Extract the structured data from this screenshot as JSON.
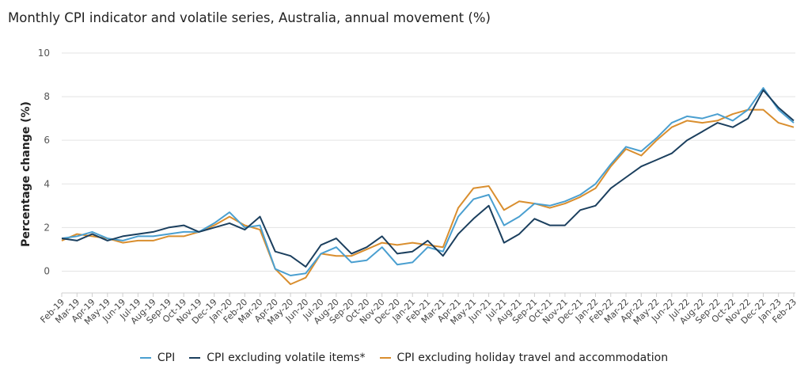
{
  "chart_data": {
    "type": "line",
    "title": "Monthly CPI indicator and volatile series, Australia, annual movement (%)",
    "xlabel": "",
    "ylabel": "Percentage change (%)",
    "ylim": [
      -1,
      10
    ],
    "yticks": [
      0,
      2,
      4,
      6,
      8,
      10
    ],
    "grid": true,
    "legend_position": "bottom",
    "categories": [
      "Feb-19",
      "Mar-19",
      "Apr-19",
      "May-19",
      "Jun-19",
      "Jul-19",
      "Aug-19",
      "Sep-19",
      "Oct-19",
      "Nov-19",
      "Dec-19",
      "Jan-20",
      "Feb-20",
      "Mar-20",
      "Apr-20",
      "May-20",
      "Jun-20",
      "Jul-20",
      "Aug-20",
      "Sep-20",
      "Oct-20",
      "Nov-20",
      "Dec-20",
      "Jan-21",
      "Feb-21",
      "Mar-21",
      "Apr-21",
      "May-21",
      "Jun-21",
      "Jul-21",
      "Aug-21",
      "Sep-21",
      "Oct-21",
      "Nov-21",
      "Dec-21",
      "Jan-22",
      "Feb-22",
      "Mar-22",
      "Apr-22",
      "May-22",
      "Jun-22",
      "Jul-22",
      "Aug-22",
      "Sep-22",
      "Oct-22",
      "Nov-22",
      "Dec-22",
      "Jan-23",
      "Feb-23"
    ],
    "series": [
      {
        "name": "CPI",
        "color": "#4a9fd0",
        "values": [
          1.5,
          1.6,
          1.8,
          1.5,
          1.4,
          1.6,
          1.6,
          1.7,
          1.8,
          1.8,
          2.2,
          2.7,
          2.0,
          2.1,
          0.1,
          -0.2,
          -0.1,
          0.8,
          1.1,
          0.4,
          0.5,
          1.1,
          0.3,
          0.4,
          1.1,
          0.9,
          2.5,
          3.3,
          3.5,
          2.1,
          2.5,
          3.1,
          3.0,
          3.2,
          3.5,
          4.0,
          4.9,
          5.7,
          5.5,
          6.1,
          6.8,
          7.1,
          7.0,
          7.2,
          6.9,
          7.4,
          8.4,
          7.4,
          6.8
        ]
      },
      {
        "name": "CPI excluding volatile items*",
        "color": "#1b3f5e",
        "values": [
          1.5,
          1.4,
          1.7,
          1.4,
          1.6,
          1.7,
          1.8,
          2.0,
          2.1,
          1.8,
          2.0,
          2.2,
          1.9,
          2.5,
          0.9,
          0.7,
          0.2,
          1.2,
          1.5,
          0.8,
          1.1,
          1.6,
          0.8,
          0.9,
          1.4,
          0.7,
          1.7,
          2.4,
          3.0,
          1.3,
          1.7,
          2.4,
          2.1,
          2.1,
          2.8,
          3.0,
          3.8,
          4.3,
          4.8,
          5.1,
          5.4,
          6.0,
          6.4,
          6.8,
          6.6,
          7.0,
          8.3,
          7.5,
          6.9
        ]
      },
      {
        "name": "CPI excluding holiday travel and accommodation",
        "color": "#d98e2e",
        "values": [
          1.4,
          1.7,
          1.6,
          1.5,
          1.3,
          1.4,
          1.4,
          1.6,
          1.6,
          1.8,
          2.1,
          2.5,
          2.1,
          1.9,
          0.1,
          -0.6,
          -0.3,
          0.8,
          0.7,
          0.7,
          1.0,
          1.3,
          1.2,
          1.3,
          1.2,
          1.1,
          2.9,
          3.8,
          3.9,
          2.8,
          3.2,
          3.1,
          2.9,
          3.1,
          3.4,
          3.8,
          4.8,
          5.6,
          5.3,
          6.0,
          6.6,
          6.9,
          6.8,
          6.9,
          7.2,
          7.4,
          7.4,
          6.8,
          6.6
        ]
      }
    ]
  },
  "legend": {
    "items": [
      {
        "label": "CPI",
        "color": "#4a9fd0"
      },
      {
        "label": "CPI excluding volatile items*",
        "color": "#1b3f5e"
      },
      {
        "label": "CPI excluding holiday travel and accommodation",
        "color": "#d98e2e"
      }
    ]
  }
}
